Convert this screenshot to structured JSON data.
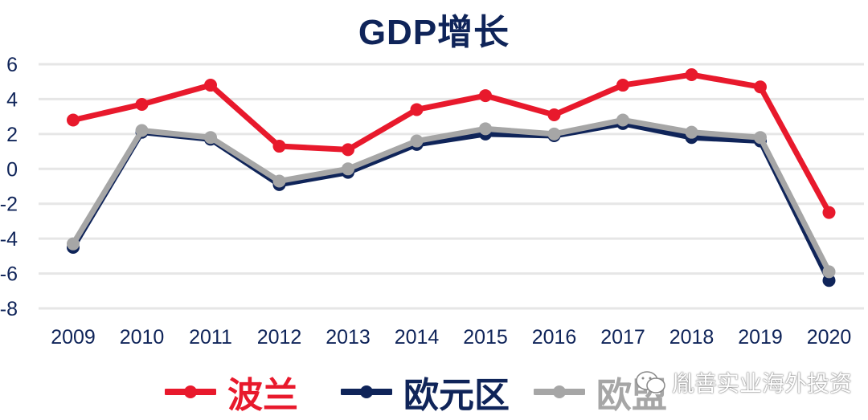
{
  "title": "GDP增长",
  "legend": [
    {
      "label": "波兰",
      "color": "#e8192c"
    },
    {
      "label": "欧元区",
      "color": "#0f2459"
    },
    {
      "label": "欧盟",
      "color": "#a6a6a6"
    }
  ],
  "watermark": {
    "text": "胤善实业海外投资",
    "icon": "wechat-icon"
  },
  "chart_data": {
    "type": "line",
    "title": "GDP增长",
    "xlabel": "",
    "ylabel": "",
    "categories": [
      "2009",
      "2010",
      "2011",
      "2012",
      "2013",
      "2014",
      "2015",
      "2016",
      "2017",
      "2018",
      "2019",
      "2020"
    ],
    "yticks": [
      6,
      4,
      2,
      0,
      -2,
      -4,
      -6,
      -8
    ],
    "ylim": [
      -8,
      6
    ],
    "grid": true,
    "legend_position": "bottom",
    "series": [
      {
        "name": "波兰",
        "color": "#e8192c",
        "values": [
          2.8,
          3.7,
          4.8,
          1.3,
          1.1,
          3.4,
          4.2,
          3.1,
          4.8,
          5.4,
          4.7,
          -2.5
        ]
      },
      {
        "name": "欧元区",
        "color": "#0f2459",
        "values": [
          -4.5,
          2.1,
          1.7,
          -0.9,
          -0.2,
          1.4,
          2.0,
          1.9,
          2.6,
          1.8,
          1.6,
          -6.4
        ]
      },
      {
        "name": "欧盟",
        "color": "#a6a6a6",
        "values": [
          -4.3,
          2.2,
          1.8,
          -0.7,
          0.0,
          1.6,
          2.3,
          2.0,
          2.8,
          2.1,
          1.8,
          -5.9
        ]
      }
    ]
  }
}
